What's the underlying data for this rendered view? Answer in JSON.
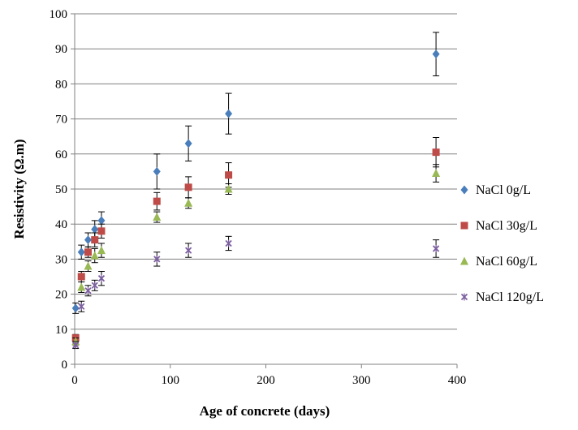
{
  "chart_data": {
    "type": "scatter",
    "xlabel": "Age of concrete (days)",
    "ylabel": "Resistivity (Ω.m)",
    "xlim": [
      0,
      400
    ],
    "ylim": [
      0,
      100
    ],
    "x_ticks": [
      0,
      100,
      200,
      300,
      400
    ],
    "y_ticks": [
      0,
      10,
      20,
      30,
      40,
      50,
      60,
      70,
      80,
      90,
      100
    ],
    "grid": "horizontal",
    "legend_position": "right",
    "series": [
      {
        "name": "NaCl 0g/L",
        "color": "#4a7ebb",
        "marker": "diamond",
        "x": [
          1,
          7,
          14,
          21,
          28,
          86,
          119,
          161,
          378
        ],
        "y": [
          16,
          32,
          35.5,
          38.5,
          41,
          55,
          63,
          71.5,
          88.5
        ],
        "err": [
          1.5,
          2,
          2,
          2.5,
          2.5,
          5,
          5,
          5.8,
          6.2
        ]
      },
      {
        "name": "NaCl 30g/L",
        "color": "#be4b48",
        "marker": "square",
        "x": [
          1,
          7,
          14,
          21,
          28,
          86,
          119,
          161,
          378
        ],
        "y": [
          7.5,
          25,
          32,
          35.5,
          38,
          46.5,
          50.5,
          54,
          60.5
        ],
        "err": [
          1,
          1.5,
          1.5,
          2,
          2,
          2.5,
          3,
          3.5,
          4.2
        ]
      },
      {
        "name": "NaCl 60g/L",
        "color": "#98b954",
        "marker": "triangle",
        "x": [
          1,
          7,
          14,
          21,
          28,
          86,
          119,
          161,
          378
        ],
        "y": [
          6.5,
          22,
          28,
          31,
          32.5,
          42,
          46,
          50,
          54.5
        ],
        "err": [
          1,
          1.5,
          1.5,
          2,
          2,
          1.5,
          1.5,
          1.5,
          2.5
        ]
      },
      {
        "name": "NaCl 120g/L",
        "color": "#7d60a0",
        "marker": "x",
        "x": [
          1,
          7,
          14,
          21,
          28,
          86,
          119,
          161,
          378
        ],
        "y": [
          5.5,
          16.5,
          21,
          22.5,
          24.5,
          30,
          32.5,
          34.5,
          33
        ],
        "err": [
          1,
          1.5,
          1.5,
          1.5,
          2,
          2,
          2,
          2,
          2.5
        ]
      }
    ]
  }
}
